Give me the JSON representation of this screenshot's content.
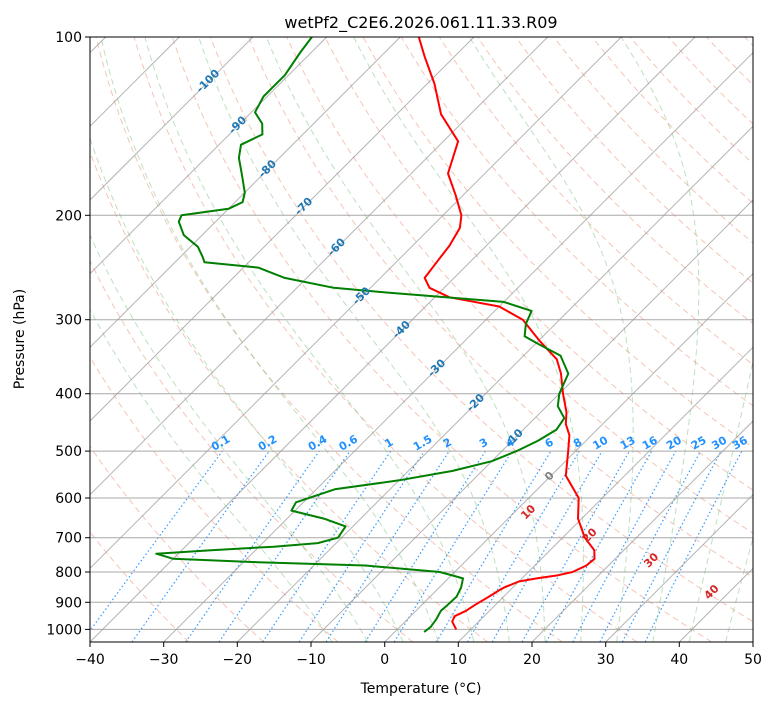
{
  "chart_data": {
    "type": "line",
    "title": "wetPf2_C2E6.2026.061.11.33.R09",
    "xlabel": "Temperature (°C)",
    "ylabel": "Pressure (hPa)",
    "xlim": [
      -40,
      50
    ],
    "ylim": [
      1050,
      100
    ],
    "y_scale": "log",
    "skew": "skew-T log-P",
    "grid": true,
    "x_ticks": [
      "−40",
      "−30",
      "−20",
      "−10",
      "0",
      "10",
      "20",
      "30",
      "40",
      "50"
    ],
    "y_ticks": [
      "100",
      "200",
      "300",
      "400",
      "500",
      "600",
      "700",
      "800",
      "900",
      "1000"
    ],
    "colors": {
      "temperature": "#ff0000",
      "dewpoint": "#007f00",
      "isotherm_labels": "#1f77b4",
      "mixing_ratio": "#1e90ff",
      "moist_adiabat_labels": "#d62728",
      "dry_adiabat": "#e9967a",
      "moist_adiabat": "#6dbb6d"
    },
    "series": [
      {
        "key": "temperature",
        "points": [
          [
            8.0,
            1000
          ],
          [
            6.4,
            970
          ],
          [
            6.0,
            950
          ],
          [
            6.8,
            930
          ],
          [
            7.2,
            910
          ],
          [
            8.0,
            880
          ],
          [
            8.5,
            860
          ],
          [
            8.8,
            850
          ],
          [
            10.0,
            830
          ],
          [
            12.0,
            820
          ],
          [
            14.5,
            810
          ],
          [
            16.0,
            800
          ],
          [
            17.0,
            780
          ],
          [
            17.2,
            760
          ],
          [
            16.0,
            735
          ],
          [
            13.0,
            700
          ],
          [
            9.5,
            650
          ],
          [
            6.8,
            600
          ],
          [
            2.0,
            550
          ],
          [
            -1.0,
            500
          ],
          [
            -3.0,
            470
          ],
          [
            -5.0,
            450
          ],
          [
            -6.5,
            430
          ],
          [
            -9.5,
            400
          ],
          [
            -12.5,
            370
          ],
          [
            -15.0,
            350
          ],
          [
            -20.0,
            325
          ],
          [
            -25.0,
            300
          ],
          [
            -30.0,
            285
          ],
          [
            -38.0,
            275
          ],
          [
            -42.0,
            265
          ],
          [
            -44.0,
            255
          ],
          [
            -44.5,
            240
          ],
          [
            -45.0,
            225
          ],
          [
            -46.0,
            210
          ],
          [
            -47.5,
            200
          ],
          [
            -51.0,
            185
          ],
          [
            -55.0,
            170
          ],
          [
            -58.0,
            150
          ],
          [
            -64.0,
            135
          ],
          [
            -69.0,
            120
          ],
          [
            -74.0,
            108
          ],
          [
            -77.5,
            100
          ]
        ]
      },
      {
        "key": "dewpoint",
        "points": [
          [
            4.0,
            1010
          ],
          [
            4.2,
            990
          ],
          [
            3.9,
            960
          ],
          [
            3.4,
            930
          ],
          [
            3.5,
            910
          ],
          [
            3.6,
            880
          ],
          [
            3.0,
            850
          ],
          [
            2.0,
            820
          ],
          [
            -2.0,
            800
          ],
          [
            -13.0,
            780
          ],
          [
            -28.0,
            770
          ],
          [
            -40.0,
            760
          ],
          [
            -43.0,
            745
          ],
          [
            -36.0,
            735
          ],
          [
            -28.0,
            725
          ],
          [
            -22.5,
            715
          ],
          [
            -20.5,
            700
          ],
          [
            -21.0,
            670
          ],
          [
            -25.0,
            650
          ],
          [
            -30.5,
            630
          ],
          [
            -31.0,
            610
          ],
          [
            -27.5,
            580
          ],
          [
            -20.0,
            560
          ],
          [
            -14.0,
            540
          ],
          [
            -10.0,
            520
          ],
          [
            -8.0,
            500
          ],
          [
            -6.5,
            480
          ],
          [
            -5.5,
            460
          ],
          [
            -6.0,
            440
          ],
          [
            -8.5,
            420
          ],
          [
            -10.0,
            400
          ],
          [
            -11.5,
            370
          ],
          [
            -15.0,
            345
          ],
          [
            -19.5,
            330
          ],
          [
            -22.5,
            320
          ],
          [
            -24.0,
            305
          ],
          [
            -25.0,
            290
          ],
          [
            -30.0,
            280
          ],
          [
            -47.0,
            270
          ],
          [
            -55.0,
            265
          ],
          [
            -63.0,
            255
          ],
          [
            -68.0,
            245
          ],
          [
            -76.0,
            240
          ],
          [
            -77.0,
            235
          ],
          [
            -79.0,
            226
          ],
          [
            -82.5,
            216
          ],
          [
            -85.0,
            205
          ],
          [
            -85.5,
            200
          ],
          [
            -80.0,
            195
          ],
          [
            -79.0,
            190
          ],
          [
            -80.0,
            183
          ],
          [
            -83.0,
            170
          ],
          [
            -85.5,
            160
          ],
          [
            -87.0,
            152
          ],
          [
            -85.5,
            146
          ],
          [
            -87.0,
            140
          ],
          [
            -89.5,
            134
          ],
          [
            -90.5,
            126
          ],
          [
            -90.5,
            116
          ],
          [
            -91.5,
            106
          ],
          [
            -92.0,
            100
          ]
        ]
      }
    ],
    "isotherm_labels": [
      "-100",
      "-90",
      "-80",
      "-70",
      "-60",
      "-50",
      "-40",
      "-30",
      "-20",
      "-10",
      "0"
    ],
    "mixing_ratio_labels": [
      "0.1",
      "0.2",
      "0.4",
      "0.6",
      "1",
      "1.5",
      "2",
      "3",
      "4",
      "6",
      "8",
      "10",
      "13",
      "16",
      "20",
      "25",
      "30",
      "36"
    ],
    "moist_adiabat_labels": [
      "10",
      "20",
      "30",
      "40"
    ]
  }
}
